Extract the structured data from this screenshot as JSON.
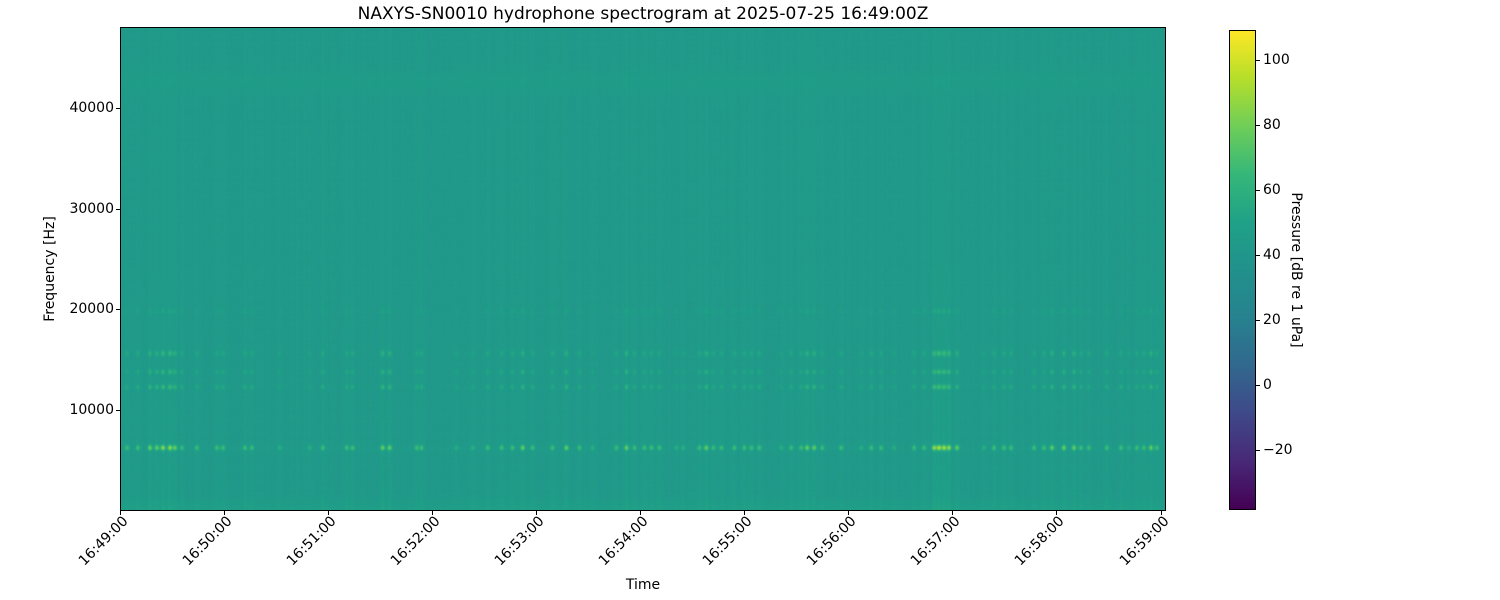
{
  "title": "NAXYS-SN0010 hydrophone spectrogram at 2025-07-25 16:49:00Z",
  "axes": {
    "xlabel": "Time",
    "ylabel": "Frequency [Hz]",
    "x_ticks": [
      "16:49:00",
      "16:50:00",
      "16:51:00",
      "16:52:00",
      "16:53:00",
      "16:54:00",
      "16:55:00",
      "16:56:00",
      "16:57:00",
      "16:58:00",
      "16:59:00"
    ],
    "y_ticks": [
      "10000",
      "20000",
      "30000",
      "40000"
    ]
  },
  "colorbar": {
    "label": "Pressure [dB re 1 uPa]",
    "tick_labels": [
      "100",
      "80",
      "60",
      "40",
      "20",
      "0",
      "−20"
    ]
  },
  "chart_data": {
    "type": "heatmap",
    "title": "NAXYS-SN0010 hydrophone spectrogram at 2025-07-25 16:49:00Z",
    "xlabel": "Time",
    "ylabel": "Frequency [Hz]",
    "colorbar_label": "Pressure [dB re 1 uPa]",
    "colormap": "viridis",
    "colormap_stops": [
      "#440154",
      "#482878",
      "#3e4989",
      "#31688e",
      "#26828e",
      "#21918c",
      "#1fa187",
      "#35b779",
      "#6ece58",
      "#b5de2b",
      "#fde725"
    ],
    "x_start_label": "16:49:00",
    "duration_s": 602,
    "tick_interval_s": 60,
    "freq_range_hz": [
      0,
      48000
    ],
    "y_tick_values": [
      10000,
      20000,
      30000,
      40000
    ],
    "colorbar_ticks": [
      100,
      80,
      60,
      40,
      20,
      0,
      -20
    ],
    "color_scale_db": [
      -38,
      109
    ],
    "background_db": 43,
    "grid": false,
    "legend": "colorbar-right",
    "tonal_bands": [
      {
        "freq_hz": 6200,
        "gain_db": 40,
        "width_hz": 270
      },
      {
        "freq_hz": 12250,
        "gain_db": 19,
        "width_hz": 260
      },
      {
        "freq_hz": 13750,
        "gain_db": 17,
        "width_hz": 260
      },
      {
        "freq_hz": 15600,
        "gain_db": 18,
        "width_hz": 300
      },
      {
        "freq_hz": 19800,
        "gain_db": 8,
        "width_hz": 300
      }
    ],
    "steady_bands": [
      {
        "freq_hz": 42600,
        "gain_db": 2.2,
        "width_hz": 1100
      },
      {
        "freq_hz": 6200,
        "gain_db": 1.2,
        "width_hz": 400
      }
    ],
    "low_freq_band": {
      "cutoff_hz": 1300,
      "gain_db": 5
    },
    "broadband_gain_db": {
      "base": 2.2,
      "low_freq_extra": 3.2,
      "low_freq_limit_hz": 26000
    },
    "events": [
      [
        3.5,
        0.55
      ],
      [
        9.8,
        0.55
      ],
      [
        16.7,
        0.8
      ],
      [
        20.7,
        0.8
      ],
      [
        24.2,
        1.0
      ],
      [
        28.2,
        1.0
      ],
      [
        31.1,
        0.8
      ],
      [
        35.1,
        0.55
      ],
      [
        43.8,
        0.55
      ],
      [
        55.3,
        0.55
      ],
      [
        58.8,
        0.55
      ],
      [
        71.4,
        0.55
      ],
      [
        75.5,
        0.55
      ],
      [
        91.6,
        0.35
      ],
      [
        108.9,
        0.35
      ],
      [
        116.4,
        0.55
      ],
      [
        130.2,
        0.55
      ],
      [
        133.6,
        0.55
      ],
      [
        150.9,
        0.8
      ],
      [
        154.9,
        0.8
      ],
      [
        170.5,
        0.55
      ],
      [
        173.4,
        0.55
      ],
      [
        193.5,
        0.35
      ],
      [
        202.8,
        0.35
      ],
      [
        211.4,
        0.55
      ],
      [
        219.5,
        0.55
      ],
      [
        225.8,
        0.55
      ],
      [
        231.6,
        0.8
      ],
      [
        237.3,
        0.55
      ],
      [
        248.8,
        0.55
      ],
      [
        256.9,
        0.8
      ],
      [
        264.4,
        0.55
      ],
      [
        271.9,
        0.35
      ],
      [
        285.7,
        0.55
      ],
      [
        291.5,
        0.8
      ],
      [
        296.1,
        0.55
      ],
      [
        301.8,
        0.55
      ],
      [
        305.9,
        0.55
      ],
      [
        310.5,
        0.55
      ],
      [
        320.3,
        0.35
      ],
      [
        324.3,
        0.35
      ],
      [
        333.5,
        0.55
      ],
      [
        337.5,
        0.8
      ],
      [
        341.6,
        0.55
      ],
      [
        346.2,
        0.55
      ],
      [
        353.7,
        0.55
      ],
      [
        359.4,
        0.55
      ],
      [
        363.5,
        0.55
      ],
      [
        368.1,
        0.55
      ],
      [
        380.7,
        0.35
      ],
      [
        386.5,
        0.55
      ],
      [
        392.2,
        0.55
      ],
      [
        395.7,
        0.8
      ],
      [
        399.7,
        0.8
      ],
      [
        404.4,
        0.55
      ],
      [
        415.3,
        0.55
      ],
      [
        426.8,
        0.35
      ],
      [
        432.6,
        0.55
      ],
      [
        438.3,
        0.55
      ],
      [
        445.8,
        0.35
      ],
      [
        457.3,
        0.55
      ],
      [
        463.1,
        0.55
      ],
      [
        468.9,
        1.0
      ],
      [
        471.7,
        1.15
      ],
      [
        474.6,
        1.1
      ],
      [
        477.5,
        1.0
      ],
      [
        482.1,
        0.8
      ],
      [
        497.7,
        0.35
      ],
      [
        503.4,
        0.55
      ],
      [
        509.2,
        0.55
      ],
      [
        513.2,
        0.55
      ],
      [
        526.5,
        0.55
      ],
      [
        532.2,
        0.55
      ],
      [
        536.8,
        0.8
      ],
      [
        543.7,
        0.8
      ],
      [
        549.5,
        0.8
      ],
      [
        553.5,
        0.55
      ],
      [
        558.1,
        0.55
      ],
      [
        568.5,
        0.55
      ],
      [
        576.6,
        0.55
      ],
      [
        581.2,
        0.35
      ],
      [
        585.8,
        0.55
      ],
      [
        589.8,
        0.55
      ],
      [
        593.9,
        0.8
      ],
      [
        597.3,
        0.55
      ]
    ]
  }
}
